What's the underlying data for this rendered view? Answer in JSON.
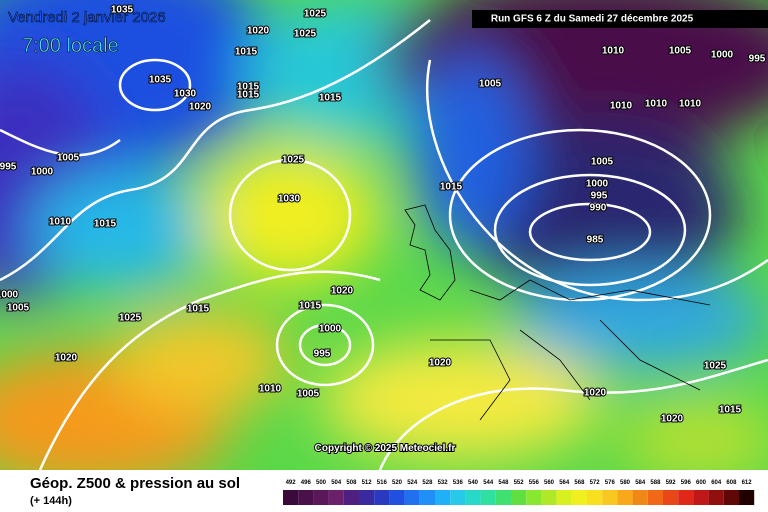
{
  "header": {
    "date": "Vendredi 2 janvier 2026",
    "time": "7:00 locale",
    "run": "Run GFS 6 Z du Samedi 27 décembre 2025"
  },
  "copyright": "Copyright © 2025 Meteociel.fr",
  "legend": {
    "title": "Géop. Z500 & pression au sol",
    "lead": "(+ 144h)",
    "scale": [
      492,
      496,
      500,
      504,
      508,
      512,
      516,
      520,
      524,
      528,
      532,
      536,
      540,
      544,
      548,
      552,
      556,
      560,
      564,
      568,
      572,
      576,
      580,
      584,
      588,
      592,
      596,
      600,
      604,
      608,
      612
    ]
  },
  "isobar_labels": [
    1035,
    1025,
    1020,
    1025,
    1015,
    1035,
    1030,
    1020,
    1015,
    1015,
    1015,
    1005,
    1000,
    995,
    1010,
    1015,
    1025,
    1030,
    1015,
    1005,
    1010,
    1005,
    1000,
    995,
    1010,
    1010,
    1010,
    1005,
    1000,
    995,
    990,
    985,
    1020,
    1015,
    1000,
    995,
    1015,
    1025,
    1020,
    1010,
    1005,
    1020,
    1020,
    1025,
    1015,
    1020,
    1000,
    1005
  ]
}
